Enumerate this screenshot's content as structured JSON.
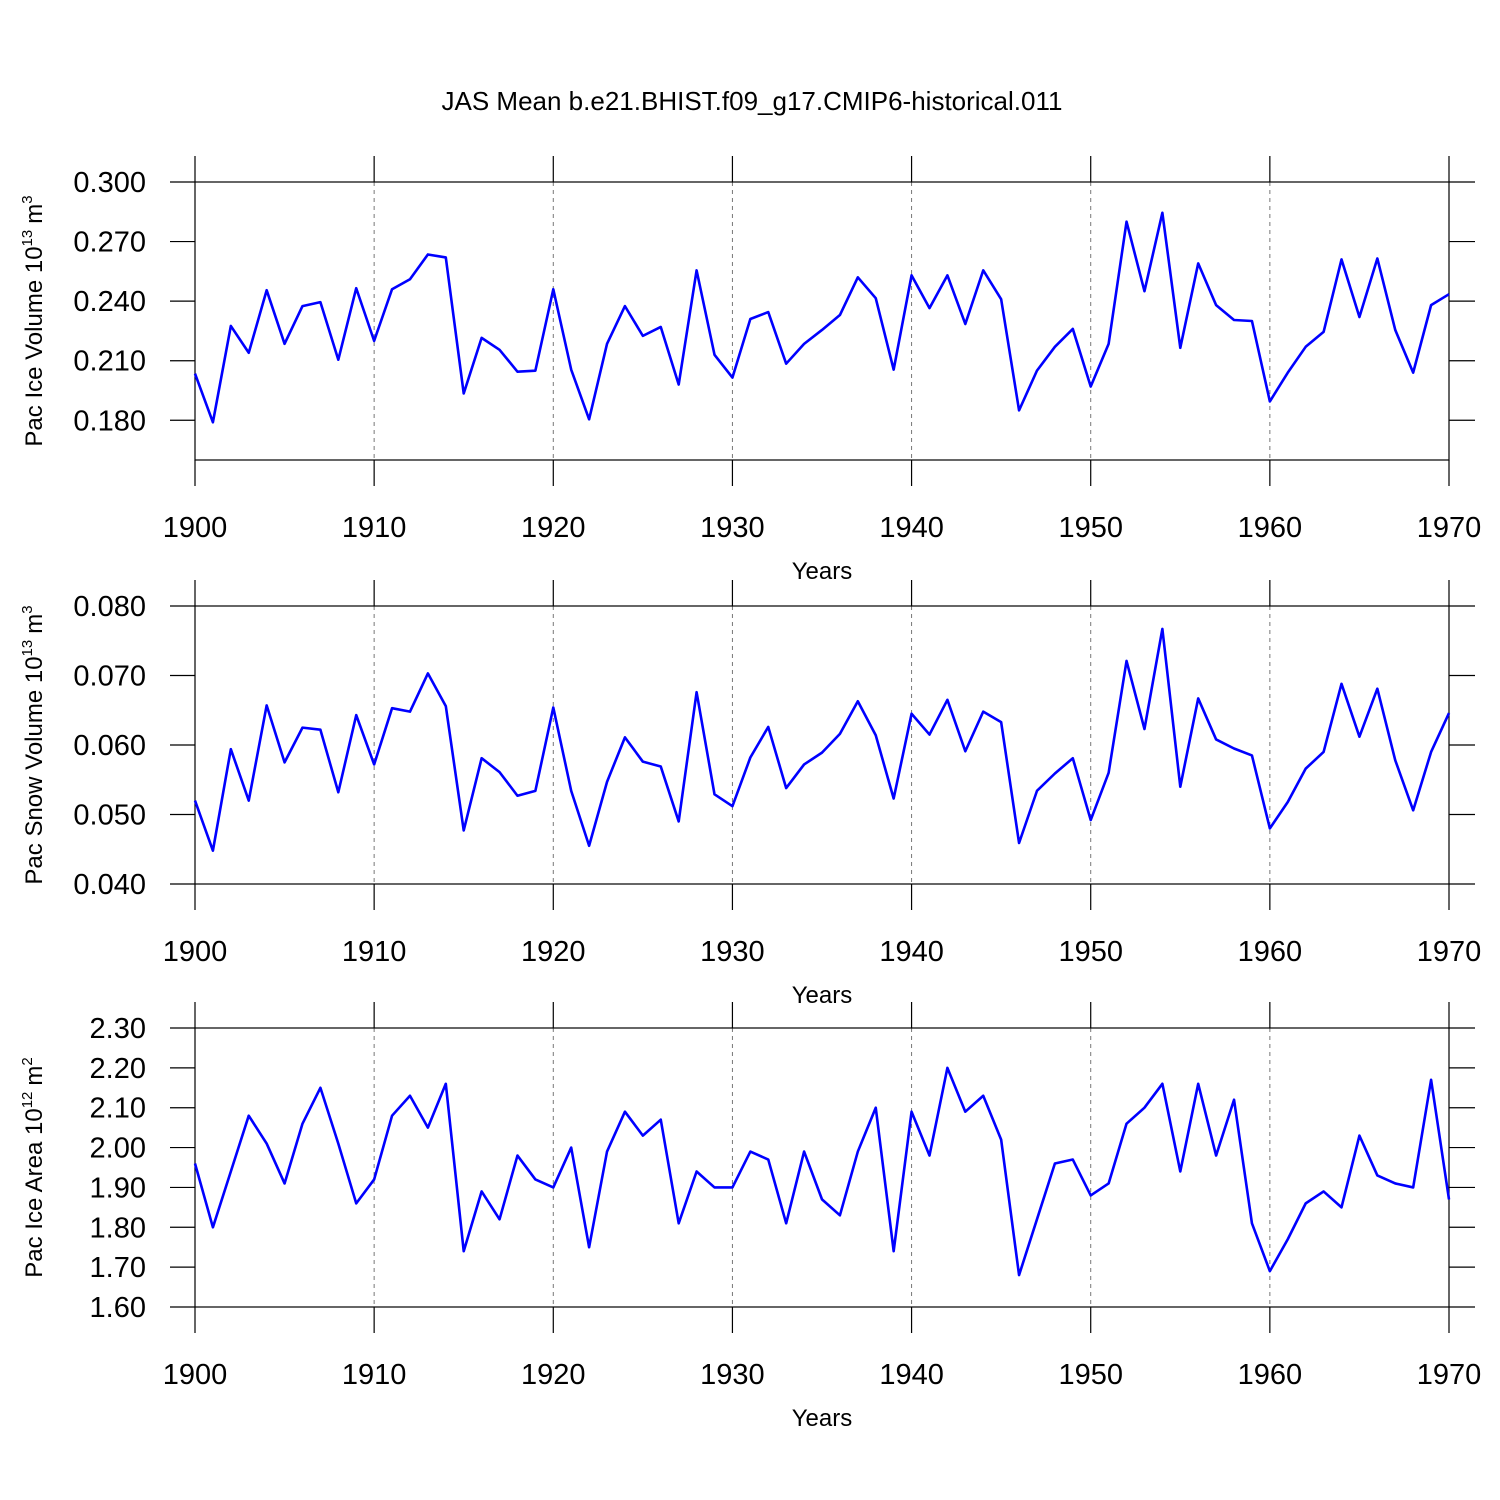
{
  "title": "JAS Mean b.e21.BHIST.f09_g17.CMIP6-historical.011",
  "chart_data": [
    {
      "type": "line",
      "xlabel": "Years",
      "ylabel": "Pac Ice Volume 10",
      "ylabel_exp": "13",
      "ylabel_unit": "m",
      "ylabel_unit_exp": "3",
      "x": [
        1900,
        1901,
        1902,
        1903,
        1904,
        1905,
        1906,
        1907,
        1908,
        1909,
        1910,
        1911,
        1912,
        1913,
        1914,
        1915,
        1916,
        1917,
        1918,
        1919,
        1920,
        1921,
        1922,
        1923,
        1924,
        1925,
        1926,
        1927,
        1928,
        1929,
        1930,
        1931,
        1932,
        1933,
        1934,
        1935,
        1936,
        1937,
        1938,
        1939,
        1940,
        1941,
        1942,
        1943,
        1944,
        1945,
        1946,
        1947,
        1948,
        1949,
        1950,
        1951,
        1952,
        1953,
        1954,
        1955,
        1956,
        1957,
        1958,
        1959,
        1960,
        1961,
        1962,
        1963,
        1964,
        1965,
        1966,
        1967,
        1968,
        1969,
        1970
      ],
      "series": [
        {
          "color": "#0000ff",
          "values": [
            0.2035,
            0.179,
            0.2275,
            0.214,
            0.2455,
            0.2185,
            0.2375,
            0.2395,
            0.2105,
            0.2465,
            0.22,
            0.246,
            0.251,
            0.2635,
            0.262,
            0.1935,
            0.2215,
            0.2155,
            0.2045,
            0.205,
            0.246,
            0.2055,
            0.1805,
            0.2185,
            0.2375,
            0.2225,
            0.227,
            0.198,
            0.2555,
            0.213,
            0.2015,
            0.231,
            0.2345,
            0.2085,
            0.2185,
            0.2255,
            0.233,
            0.252,
            0.2415,
            0.2055,
            0.253,
            0.2365,
            0.253,
            0.2285,
            0.2555,
            0.241,
            0.185,
            0.205,
            0.217,
            0.226,
            0.197,
            0.2185,
            0.28,
            0.245,
            0.2845,
            0.2165,
            0.259,
            0.238,
            0.2305,
            0.23,
            0.1895,
            0.204,
            0.217,
            0.2245,
            0.261,
            0.232,
            0.2615,
            0.2255,
            0.204,
            0.238,
            0.2435
          ]
        }
      ],
      "xlim": [
        1900,
        1970
      ],
      "xticks": [
        1900,
        1910,
        1920,
        1930,
        1940,
        1950,
        1960,
        1970
      ],
      "ylim": [
        0.16,
        0.3
      ],
      "yticks": [
        {
          "value": 0.18,
          "label": "0.180"
        },
        {
          "value": 0.21,
          "label": "0.210"
        },
        {
          "value": 0.24,
          "label": "0.240"
        },
        {
          "value": 0.27,
          "label": "0.270"
        },
        {
          "value": 0.3,
          "label": "0.300"
        }
      ],
      "xgrid": true
    },
    {
      "type": "line",
      "xlabel": "Years",
      "ylabel": "Pac Snow Volume 10",
      "ylabel_exp": "13",
      "ylabel_unit": "m",
      "ylabel_unit_exp": "3",
      "x": [
        1900,
        1901,
        1902,
        1903,
        1904,
        1905,
        1906,
        1907,
        1908,
        1909,
        1910,
        1911,
        1912,
        1913,
        1914,
        1915,
        1916,
        1917,
        1918,
        1919,
        1920,
        1921,
        1922,
        1923,
        1924,
        1925,
        1926,
        1927,
        1928,
        1929,
        1930,
        1931,
        1932,
        1933,
        1934,
        1935,
        1936,
        1937,
        1938,
        1939,
        1940,
        1941,
        1942,
        1943,
        1944,
        1945,
        1946,
        1947,
        1948,
        1949,
        1950,
        1951,
        1952,
        1953,
        1954,
        1955,
        1956,
        1957,
        1958,
        1959,
        1960,
        1961,
        1962,
        1963,
        1964,
        1965,
        1966,
        1967,
        1968,
        1969,
        1970
      ],
      "series": [
        {
          "color": "#0000ff",
          "values": [
            0.052,
            0.0448,
            0.0594,
            0.052,
            0.0657,
            0.0575,
            0.0625,
            0.0622,
            0.0532,
            0.0643,
            0.0572,
            0.0653,
            0.0648,
            0.0703,
            0.0656,
            0.0477,
            0.0581,
            0.0561,
            0.0527,
            0.0534,
            0.0654,
            0.0534,
            0.0455,
            0.0547,
            0.0611,
            0.0576,
            0.0569,
            0.049,
            0.0676,
            0.0529,
            0.0512,
            0.0582,
            0.0626,
            0.0538,
            0.0572,
            0.0589,
            0.0616,
            0.0663,
            0.0614,
            0.0523,
            0.0645,
            0.0615,
            0.0665,
            0.0591,
            0.0648,
            0.0633,
            0.0459,
            0.0534,
            0.0559,
            0.0581,
            0.0492,
            0.056,
            0.0721,
            0.0623,
            0.0767,
            0.054,
            0.0667,
            0.0608,
            0.0595,
            0.0585,
            0.048,
            0.0518,
            0.0566,
            0.059,
            0.0688,
            0.0612,
            0.0681,
            0.0578,
            0.0506,
            0.059,
            0.0646
          ]
        }
      ],
      "xlim": [
        1900,
        1970
      ],
      "xticks": [
        1900,
        1910,
        1920,
        1930,
        1940,
        1950,
        1960,
        1970
      ],
      "ylim": [
        0.04,
        0.08
      ],
      "yticks": [
        {
          "value": 0.04,
          "label": "0.040"
        },
        {
          "value": 0.05,
          "label": "0.050"
        },
        {
          "value": 0.06,
          "label": "0.060"
        },
        {
          "value": 0.07,
          "label": "0.070"
        },
        {
          "value": 0.08,
          "label": "0.080"
        }
      ],
      "xgrid": true
    },
    {
      "type": "line",
      "xlabel": "Years",
      "ylabel": "Pac Ice Area 10",
      "ylabel_exp": "12",
      "ylabel_unit": "m",
      "ylabel_unit_exp": "2",
      "x": [
        1900,
        1901,
        1902,
        1903,
        1904,
        1905,
        1906,
        1907,
        1908,
        1909,
        1910,
        1911,
        1912,
        1913,
        1914,
        1915,
        1916,
        1917,
        1918,
        1919,
        1920,
        1921,
        1922,
        1923,
        1924,
        1925,
        1926,
        1927,
        1928,
        1929,
        1930,
        1931,
        1932,
        1933,
        1934,
        1935,
        1936,
        1937,
        1938,
        1939,
        1940,
        1941,
        1942,
        1943,
        1944,
        1945,
        1946,
        1947,
        1948,
        1949,
        1950,
        1951,
        1952,
        1953,
        1954,
        1955,
        1956,
        1957,
        1958,
        1959,
        1960,
        1961,
        1962,
        1963,
        1964,
        1965,
        1966,
        1967,
        1968,
        1969,
        1970
      ],
      "series": [
        {
          "color": "#0000ff",
          "values": [
            1.96,
            1.8,
            1.94,
            2.08,
            2.01,
            1.91,
            2.06,
            2.15,
            2.01,
            1.86,
            1.92,
            2.08,
            2.13,
            2.05,
            2.16,
            1.74,
            1.89,
            1.82,
            1.98,
            1.92,
            1.9,
            2.0,
            1.75,
            1.99,
            2.09,
            2.03,
            2.07,
            1.81,
            1.94,
            1.9,
            1.9,
            1.99,
            1.97,
            1.81,
            1.99,
            1.87,
            1.83,
            1.99,
            2.1,
            1.74,
            2.09,
            1.98,
            2.2,
            2.09,
            2.13,
            2.02,
            1.68,
            1.82,
            1.96,
            1.97,
            1.88,
            1.91,
            2.06,
            2.1,
            2.16,
            1.94,
            2.16,
            1.98,
            2.12,
            1.81,
            1.69,
            1.77,
            1.86,
            1.89,
            1.85,
            2.03,
            1.93,
            1.91,
            1.9,
            2.17,
            1.87
          ]
        }
      ],
      "xlim": [
        1900,
        1970
      ],
      "xticks": [
        1900,
        1910,
        1920,
        1930,
        1940,
        1950,
        1960,
        1970
      ],
      "ylim": [
        1.6,
        2.3
      ],
      "yticks": [
        {
          "value": 1.6,
          "label": "1.60"
        },
        {
          "value": 1.7,
          "label": "1.70"
        },
        {
          "value": 1.8,
          "label": "1.80"
        },
        {
          "value": 1.9,
          "label": "1.90"
        },
        {
          "value": 2.0,
          "label": "2.00"
        },
        {
          "value": 2.1,
          "label": "2.10"
        },
        {
          "value": 2.2,
          "label": "2.20"
        },
        {
          "value": 2.3,
          "label": "2.30"
        }
      ],
      "xgrid": true
    }
  ]
}
